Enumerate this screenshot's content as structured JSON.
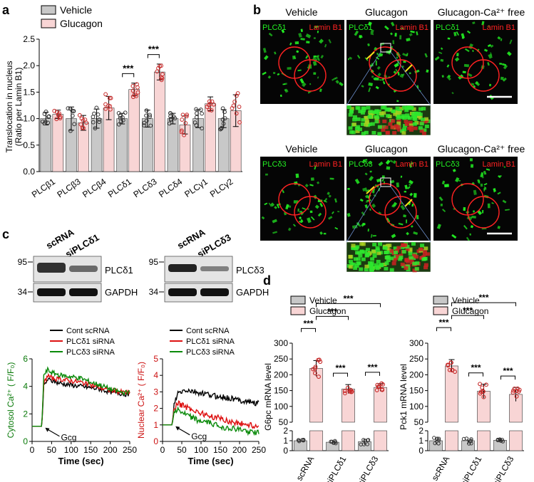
{
  "panel_labels": {
    "a": "a",
    "b": "b",
    "c": "c",
    "d": "d"
  },
  "colors": {
    "vehicle_fill": "#c8c8c8",
    "glucagon_fill": "#f8d5d5",
    "vehicle_dot": "#333333",
    "glucagon_dot": "#c62828",
    "green_channel": "#22ee22",
    "red_channel": "#ff2222",
    "ctrl_trace": "#000000",
    "d1_trace": "#dd1111",
    "d3_trace": "#0a8a0a",
    "arrow_yellow": "#f2e21a",
    "magnifier": "#6a8cc8"
  },
  "chart_data": [
    {
      "panel": "a",
      "type": "bar",
      "legend": [
        "Vehicle",
        "Glucagon"
      ],
      "ylabel": "Translocation in nucleus",
      "ylabel2": "(Ratio per Lamin B1)",
      "ylim": [
        0,
        2.5
      ],
      "yticks": [
        "0.0",
        "0.5",
        "1.0",
        "1.5",
        "2.0",
        "2.5"
      ],
      "categories": [
        "PLCβ1",
        "PLCβ3",
        "PLCβ4",
        "PLCδ1",
        "PLCδ3",
        "PLCδ4",
        "PLCγ1",
        "PLCγ2"
      ],
      "series": [
        {
          "name": "Vehicle",
          "values": [
            1.0,
            1.0,
            1.0,
            1.0,
            1.0,
            1.0,
            1.0,
            1.0
          ],
          "sd": [
            0.12,
            0.22,
            0.18,
            0.1,
            0.16,
            0.1,
            0.17,
            0.17
          ]
        },
        {
          "name": "Glucagon",
          "values": [
            1.08,
            0.92,
            1.2,
            1.55,
            1.88,
            0.88,
            1.28,
            1.15
          ],
          "sd": [
            0.08,
            0.14,
            0.22,
            0.12,
            0.15,
            0.17,
            0.13,
            0.3
          ]
        }
      ],
      "significance": [
        {
          "category": "PLCδ1",
          "label": "***"
        },
        {
          "category": "PLCδ3",
          "label": "***"
        }
      ]
    },
    {
      "panel": "c-cytosol",
      "type": "line",
      "ylabel": "Cytosol Ca²⁺ ( F/F₀)",
      "xlabel": "Time (sec)",
      "xlim": [
        0,
        250
      ],
      "ylim": [
        0,
        6
      ],
      "xticks": [
        "0",
        "50",
        "100",
        "150",
        "200",
        "250"
      ],
      "yticks": [
        "0",
        "2",
        "4",
        "6"
      ],
      "series": [
        {
          "name": "Cont scRNA",
          "x": [
            0,
            25,
            30,
            40,
            50,
            75,
            100,
            125,
            150,
            175,
            200,
            225,
            250
          ],
          "y": [
            1.1,
            1.1,
            4.0,
            4.5,
            4.4,
            4.2,
            4.1,
            4.0,
            3.9,
            3.8,
            3.6,
            3.5,
            3.4
          ]
        },
        {
          "name": "PLCδ1 siRNA",
          "x": [
            0,
            25,
            30,
            40,
            50,
            75,
            100,
            125,
            150,
            175,
            200,
            225,
            250
          ],
          "y": [
            1.1,
            1.1,
            4.2,
            4.8,
            4.6,
            4.5,
            4.4,
            4.3,
            4.1,
            3.9,
            3.7,
            3.6,
            3.5
          ]
        },
        {
          "name": "PLCδ3 siRNA",
          "x": [
            0,
            25,
            30,
            40,
            50,
            75,
            100,
            125,
            150,
            175,
            200,
            225,
            250
          ],
          "y": [
            1.1,
            1.1,
            4.8,
            5.2,
            5.0,
            4.8,
            4.7,
            4.6,
            4.3,
            4.1,
            3.8,
            3.6,
            3.5
          ]
        }
      ],
      "annotation": "Gcg"
    },
    {
      "panel": "c-nuclear",
      "type": "line",
      "ylabel": "Nuclear Ca²⁺ ( F/F₀)",
      "xlabel": "Time (sec)",
      "xlim": [
        0,
        250
      ],
      "ylim": [
        0,
        5
      ],
      "xticks": [
        "0",
        "50",
        "100",
        "150",
        "200",
        "250"
      ],
      "yticks": [
        "0",
        "1",
        "2",
        "3",
        "4",
        "5"
      ],
      "series": [
        {
          "name": "Cont scRNA",
          "x": [
            0,
            25,
            30,
            40,
            60,
            80,
            100,
            125,
            150,
            175,
            200,
            225,
            250
          ],
          "y": [
            1.0,
            1.0,
            2.2,
            2.9,
            3.1,
            3.0,
            2.9,
            2.8,
            2.7,
            2.6,
            2.5,
            2.4,
            2.3
          ]
        },
        {
          "name": "PLCδ1 siRNA",
          "x": [
            0,
            25,
            30,
            40,
            60,
            80,
            100,
            125,
            150,
            175,
            200,
            225,
            250
          ],
          "y": [
            1.0,
            1.0,
            2.0,
            2.3,
            2.1,
            1.9,
            1.7,
            1.5,
            1.4,
            1.2,
            1.1,
            1.0,
            0.9
          ]
        },
        {
          "name": "PLCδ3 siRNA",
          "x": [
            0,
            25,
            30,
            40,
            60,
            80,
            100,
            125,
            150,
            175,
            200,
            225,
            250
          ],
          "y": [
            1.0,
            1.0,
            1.9,
            1.9,
            1.6,
            1.4,
            1.2,
            1.1,
            0.9,
            0.8,
            0.7,
            0.6,
            0.5
          ]
        }
      ],
      "annotation": "Gcg"
    },
    {
      "panel": "d-g6pc",
      "type": "bar",
      "ylabel": "G6pc mRNA level",
      "categories": [
        "scRNA",
        "siPLCδ1",
        "siPLCδ3"
      ],
      "axis_break": {
        "lower": [
          0,
          2
        ],
        "upper": [
          50,
          300
        ]
      },
      "yticks_lower": [
        "0",
        "1",
        "2"
      ],
      "yticks_upper": [
        "50",
        "100",
        "150",
        "200",
        "250",
        "300"
      ],
      "series": [
        {
          "name": "Vehicle",
          "values": [
            1.0,
            0.85,
            0.9
          ],
          "sd": [
            0.1,
            0.15,
            0.3
          ]
        },
        {
          "name": "Glucagon",
          "values": [
            220,
            155,
            160
          ],
          "sd": [
            25,
            14,
            12
          ]
        }
      ],
      "significance": [
        "***",
        "***",
        "***",
        "***",
        "***"
      ]
    },
    {
      "panel": "d-pck1",
      "type": "bar",
      "ylabel": "Pck1 mRNA level",
      "categories": [
        "scRNA",
        "siPLCδ1",
        "siPLCδ3"
      ],
      "axis_break": {
        "lower": [
          0,
          2
        ],
        "upper": [
          50,
          300
        ]
      },
      "yticks_lower": [
        "0",
        "1",
        "2"
      ],
      "yticks_upper": [
        "50",
        "100",
        "150",
        "200",
        "250",
        "300"
      ],
      "series": [
        {
          "name": "Vehicle",
          "values": [
            1.0,
            1.0,
            1.05
          ],
          "sd": [
            0.3,
            0.3,
            0.15
          ]
        },
        {
          "name": "Glucagon",
          "values": [
            228,
            148,
            138
          ],
          "sd": [
            20,
            22,
            22
          ]
        }
      ],
      "significance": [
        "***",
        "***",
        "***",
        "***",
        "***"
      ]
    }
  ],
  "microscopy": {
    "rows": [
      {
        "titles": [
          "Vehicle",
          "Glucagon",
          "Glucagon-Ca²⁺ free"
        ],
        "green_label": "PLCδ1",
        "red_label": "Lamin B1"
      },
      {
        "titles": [
          "Vehicle",
          "Glucagon",
          "Glucagon-Ca²⁺ free"
        ],
        "green_label": "PLCδ3",
        "red_label": "Lamin B1"
      }
    ]
  },
  "western": [
    {
      "lanes": [
        "scRNA",
        "siPLCδ1"
      ],
      "markers": [
        "95",
        "34"
      ],
      "bands": [
        "PLCδ1",
        "GAPDH"
      ]
    },
    {
      "lanes": [
        "scRNA",
        "siPLCδ3"
      ],
      "markers": [
        "95",
        "34"
      ],
      "bands": [
        "PLCδ3",
        "GAPDH"
      ]
    }
  ]
}
